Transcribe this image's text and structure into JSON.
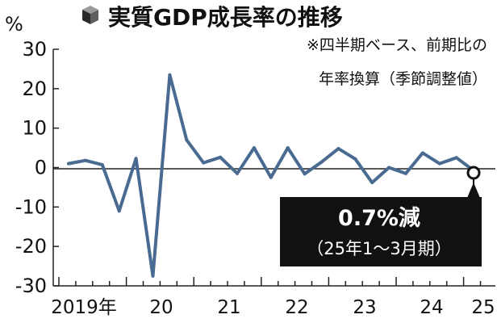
{
  "chart_data": {
    "type": "line",
    "title": "実質GDP成長率の推移",
    "note": [
      "※四半期ベース、前期比の",
      "年率換算（季節調整値）"
    ],
    "unit": "%",
    "ylim": [
      -30,
      30
    ],
    "yticks": [
      30,
      20,
      10,
      0,
      -10,
      -20,
      -30
    ],
    "year_labels": [
      "2019年",
      "20",
      "21",
      "22",
      "23",
      "24",
      "25"
    ],
    "series": [
      {
        "color": "#4a6b91",
        "x": [
          "2019Q1",
          "2019Q2",
          "2019Q3",
          "2019Q4",
          "2020Q1",
          "2020Q2",
          "2020Q3",
          "2020Q4",
          "2021Q1",
          "2021Q2",
          "2021Q3",
          "2021Q4",
          "2022Q1",
          "2022Q2",
          "2022Q3",
          "2022Q4",
          "2023Q1",
          "2023Q2",
          "2023Q3",
          "2023Q4",
          "2024Q1",
          "2024Q2",
          "2024Q3",
          "2024Q4",
          "2025Q1"
        ],
        "values": [
          1.0,
          1.8,
          0.7,
          -11.0,
          2.3,
          -27.5,
          23.5,
          7.0,
          1.2,
          2.6,
          -1.5,
          5.0,
          -2.5,
          5.0,
          -1.6,
          1.4,
          4.8,
          2.2,
          -3.8,
          0.0,
          -1.5,
          3.7,
          1.0,
          2.5,
          -0.7
        ]
      }
    ],
    "callout": {
      "main": "0.7%減",
      "sub": "（25年1〜3月期）"
    },
    "grid": false,
    "legend": "none"
  }
}
